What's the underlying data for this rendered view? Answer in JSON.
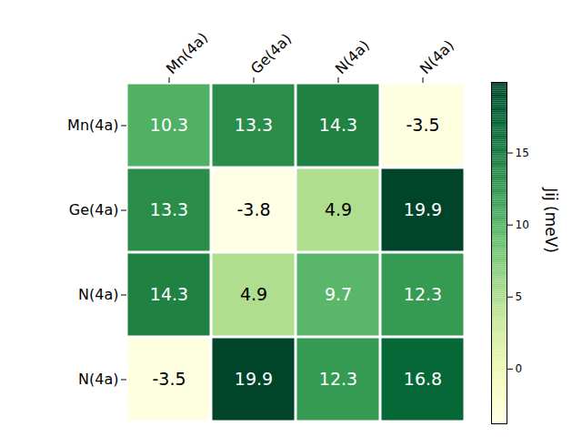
{
  "chart_data": {
    "type": "heatmap",
    "x_categories": [
      "Mn(4a)",
      "Ge(4a)",
      "N(4a)",
      "N(4a)"
    ],
    "y_categories": [
      "Mn(4a)",
      "Ge(4a)",
      "N(4a)",
      "N(4a)"
    ],
    "cells": [
      [
        10.3,
        13.3,
        14.3,
        -3.5
      ],
      [
        13.3,
        -3.8,
        4.9,
        19.9
      ],
      [
        14.3,
        4.9,
        9.7,
        12.3
      ],
      [
        -3.5,
        19.9,
        12.3,
        16.8
      ]
    ],
    "data_labels": true,
    "colorbar": {
      "label": "Jij (meV)",
      "range": [
        -3.8,
        19.9
      ],
      "ticks": [
        0,
        5,
        10,
        15
      ]
    }
  }
}
